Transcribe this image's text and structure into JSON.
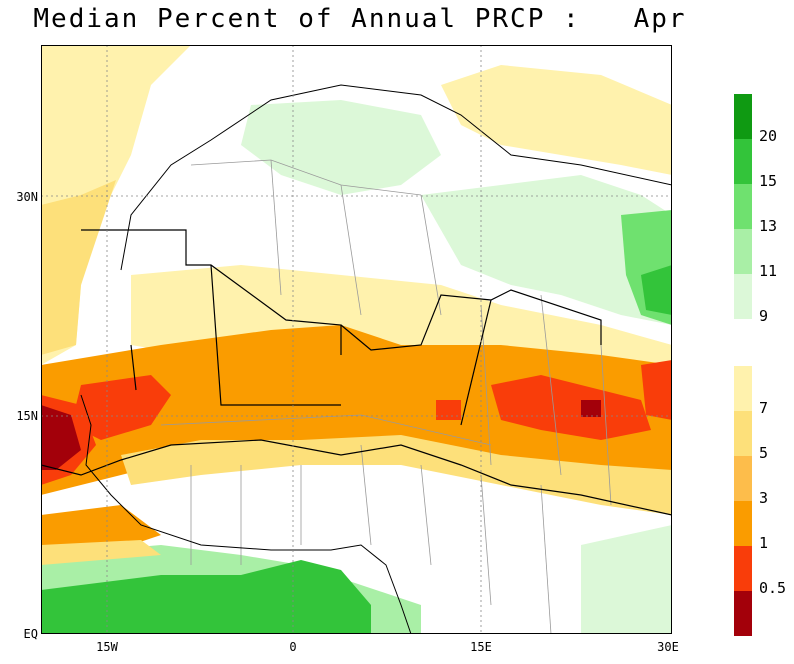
{
  "title": "Median Percent of Annual PRCP :   Apr",
  "axes": {
    "lat_labels": [
      "30N",
      "15N",
      "EQ"
    ],
    "lon_labels": [
      "15W",
      "0",
      "15E",
      "30E"
    ]
  },
  "legend": {
    "green_scale": [
      {
        "label": "20",
        "color": "#0f9a12"
      },
      {
        "label": "15",
        "color": "#33c43a"
      },
      {
        "label": "13",
        "color": "#6fe16f"
      },
      {
        "label": "11",
        "color": "#a9efa6"
      },
      {
        "label": "9",
        "color": "#dcf8d8"
      }
    ],
    "warm_scale": [
      {
        "label": "7",
        "color": "#fff2ad"
      },
      {
        "label": "5",
        "color": "#fde07a"
      },
      {
        "label": "3",
        "color": "#fdbd4b"
      },
      {
        "label": "1",
        "color": "#fa9c00"
      },
      {
        "label": "0.5",
        "color": "#f93d0a"
      },
      {
        "label": "",
        "color": "#a3000a"
      }
    ]
  },
  "colors": {
    "ocean_yellow": "#fff2ad",
    "land_white": "#ffffff",
    "border_gray": "#9a9a9a",
    "boundary_black": "#000000"
  }
}
